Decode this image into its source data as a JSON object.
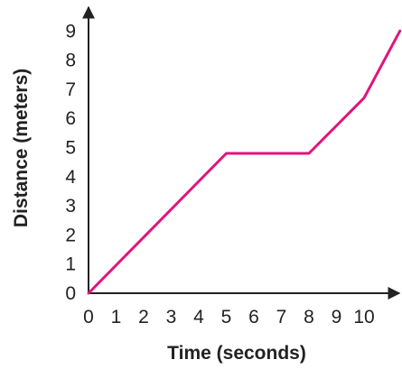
{
  "chart_data": {
    "type": "line",
    "title": "",
    "xlabel": "Time (seconds)",
    "ylabel": "Distance (meters)",
    "xlim": [
      0,
      11.5
    ],
    "ylim": [
      0,
      9.6
    ],
    "xticks": [
      "0",
      "1",
      "2",
      "3",
      "4",
      "5",
      "6",
      "7",
      "8",
      "9",
      "10"
    ],
    "yticks": [
      "0",
      "1",
      "2",
      "3",
      "4",
      "5",
      "6",
      "7",
      "8",
      "9"
    ],
    "grid": false,
    "legend": "none",
    "series": [
      {
        "x": [
          0,
          5,
          8,
          10,
          11.3
        ],
        "y": [
          0,
          4.8,
          4.8,
          6.7,
          9.0
        ],
        "color": "#e0147c"
      }
    ],
    "axis_color": "#222222"
  }
}
